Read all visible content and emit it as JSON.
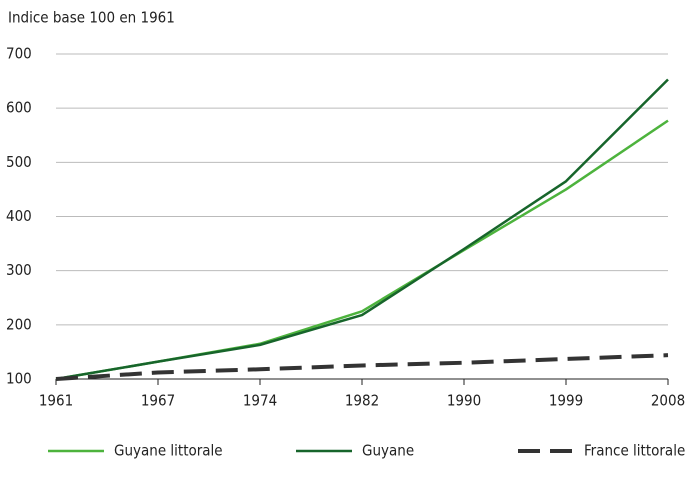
{
  "chart_data": {
    "type": "line",
    "title": "Indice base 100 en 1961",
    "categories": [
      "1961",
      "1967",
      "1974",
      "1982",
      "1990",
      "1999",
      "2008"
    ],
    "series": [
      {
        "name": "Guyane littorale",
        "color": "#4db33d",
        "dashed": false,
        "values": [
          100,
          132,
          165,
          225,
          338,
          450,
          577
        ]
      },
      {
        "name": "Guyane",
        "color": "#17652b",
        "dashed": false,
        "values": [
          100,
          132,
          163,
          218,
          340,
          465,
          653
        ]
      },
      {
        "name": "France littorale",
        "color": "#333333",
        "dashed": true,
        "values": [
          100,
          112,
          118,
          125,
          130,
          137,
          144
        ]
      }
    ],
    "ylim": [
      100,
      700
    ],
    "yticks": [
      100,
      200,
      300,
      400,
      500,
      600,
      700
    ],
    "grid": true
  }
}
